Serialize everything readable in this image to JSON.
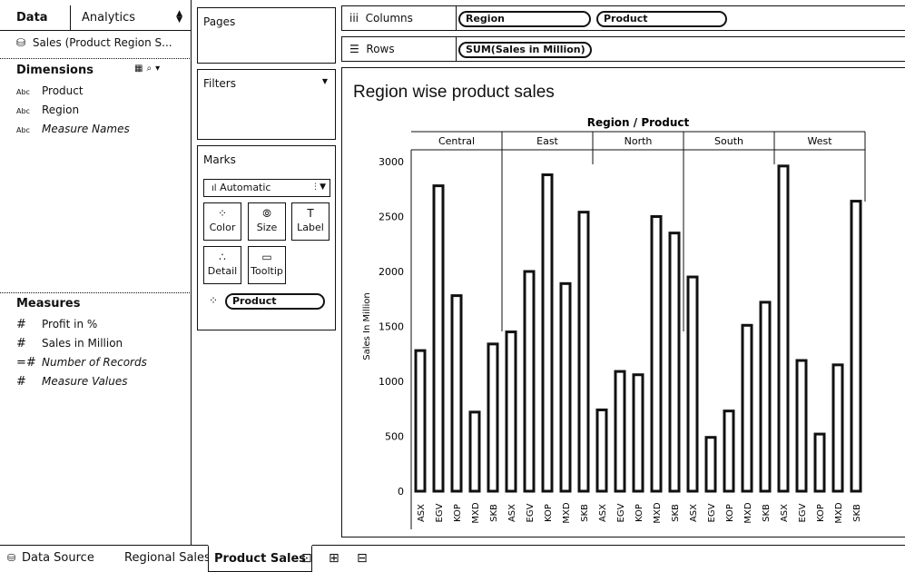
{
  "data_pane": {
    "tab_data": "Data",
    "tab_analytics": "Analytics",
    "datasource": "Sales (Product Region S...",
    "dimensions_title": "Dimensions",
    "dimensions": [
      {
        "type": "Abc",
        "name": "Product",
        "italic": false
      },
      {
        "type": "Abc",
        "name": "Region",
        "italic": false
      },
      {
        "type": "Abc",
        "name": "Measure Names",
        "italic": true
      }
    ],
    "measures_title": "Measures",
    "measures": [
      {
        "type": "#",
        "name": "Profit in %",
        "italic": false
      },
      {
        "type": "#",
        "name": "Sales in Million",
        "italic": false
      },
      {
        "type": "=#",
        "name": "Number of Records",
        "italic": true
      },
      {
        "type": "#",
        "name": "Measure Values",
        "italic": true
      }
    ]
  },
  "cards": {
    "pages": "Pages",
    "filters": "Filters",
    "marks": "Marks",
    "mark_type": "Automatic",
    "mark_buttons": [
      {
        "label": "Color",
        "icon": "color-icon"
      },
      {
        "label": "Size",
        "icon": "size-icon"
      },
      {
        "label": "Label",
        "icon": "label-icon"
      },
      {
        "label": "Detail",
        "icon": "detail-icon"
      },
      {
        "label": "Tooltip",
        "icon": "tooltip-icon"
      }
    ],
    "color_pill": "Product"
  },
  "shelves": {
    "columns_label": "Columns",
    "columns_pills": [
      "Region",
      "Product"
    ],
    "rows_label": "Rows",
    "rows_pills": [
      "SUM(Sales in Million)"
    ]
  },
  "view": {
    "title": "Region wise product sales"
  },
  "chart_data": {
    "type": "bar",
    "title": "Region wise product sales",
    "header": "Region / Product",
    "ylabel": "Sales In Million",
    "ylim": [
      0,
      3000
    ],
    "yticks": [
      0,
      500,
      1000,
      1500,
      2000,
      2500,
      3000
    ],
    "products": [
      "ASX",
      "EGV",
      "KOP",
      "MXD",
      "SKB"
    ],
    "regions": [
      {
        "name": "Central",
        "values": [
          1280,
          2780,
          1780,
          720,
          1340
        ]
      },
      {
        "name": "East",
        "values": [
          1450,
          2000,
          2880,
          1890,
          2540
        ]
      },
      {
        "name": "North",
        "values": [
          740,
          1090,
          1060,
          2500,
          2350
        ]
      },
      {
        "name": "South",
        "values": [
          1950,
          490,
          730,
          1510,
          1720
        ]
      },
      {
        "name": "West",
        "values": [
          2960,
          1190,
          520,
          1150,
          2640
        ]
      }
    ],
    "grid": false,
    "legend": "none"
  },
  "bottom_tabs": {
    "data_source": "Data Source",
    "tabs": [
      "Regional Sales",
      "Product Sales"
    ],
    "active": "Product Sales"
  }
}
